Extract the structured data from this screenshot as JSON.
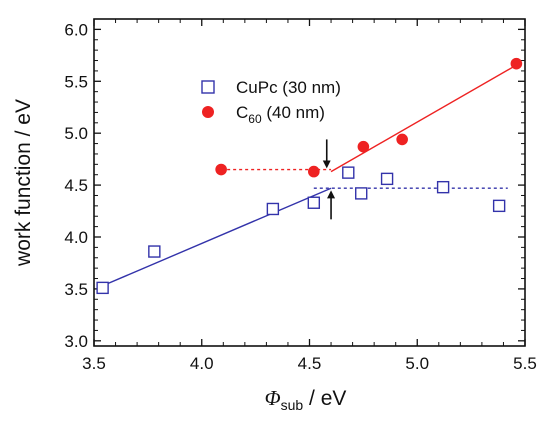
{
  "chart_data": {
    "type": "scatter",
    "xlabel": {
      "symbol": "Φ",
      "sub": "sub",
      "unit": " / eV"
    },
    "ylabel": "work function / eV",
    "xlim": [
      3.5,
      5.5
    ],
    "ylim": [
      2.95,
      6.1
    ],
    "x_ticks": [
      "3.5",
      "4.0",
      "4.5",
      "5.0",
      "5.5"
    ],
    "y_ticks": [
      "3.0",
      "3.5",
      "4.0",
      "4.5",
      "5.0",
      "5.5",
      "6.0"
    ],
    "grid": false,
    "legend_position": "top-center",
    "series": [
      {
        "name": "CuPc (30 nm)",
        "marker": "open-square",
        "color": "#3333aa",
        "points": [
          {
            "x": 3.54,
            "y": 3.51
          },
          {
            "x": 3.78,
            "y": 3.86
          },
          {
            "x": 4.33,
            "y": 4.27
          },
          {
            "x": 4.52,
            "y": 4.33
          },
          {
            "x": 4.68,
            "y": 4.62
          },
          {
            "x": 4.74,
            "y": 4.42
          },
          {
            "x": 4.86,
            "y": 4.56
          },
          {
            "x": 5.12,
            "y": 4.48
          },
          {
            "x": 5.38,
            "y": 4.3
          }
        ],
        "fit_line": {
          "x": [
            3.54,
            4.6
          ],
          "y": [
            3.53,
            4.47
          ]
        },
        "dashed_line": {
          "x": [
            4.52,
            5.42
          ],
          "y": [
            4.47,
            4.47
          ]
        }
      },
      {
        "name": "C60 (40 nm)",
        "name_parts": {
          "main": "C",
          "sub": "60",
          "rest": " (40 nm)"
        },
        "marker": "filled-circle",
        "color": "#ee2222",
        "points": [
          {
            "x": 4.09,
            "y": 4.65
          },
          {
            "x": 4.52,
            "y": 4.63
          },
          {
            "x": 4.75,
            "y": 4.87
          },
          {
            "x": 4.93,
            "y": 4.94
          },
          {
            "x": 5.46,
            "y": 5.67
          }
        ],
        "fit_line": {
          "x": [
            4.6,
            5.48
          ],
          "y": [
            4.63,
            5.68
          ]
        },
        "dashed_line": {
          "x": [
            4.09,
            4.6
          ],
          "y": [
            4.65,
            4.65
          ]
        }
      }
    ],
    "annotations": [
      {
        "type": "arrow-down",
        "x": 4.58,
        "y_from": 4.94,
        "y_to": 4.68
      },
      {
        "type": "arrow-up",
        "x": 4.6,
        "y_from": 4.17,
        "y_to": 4.43
      }
    ]
  }
}
